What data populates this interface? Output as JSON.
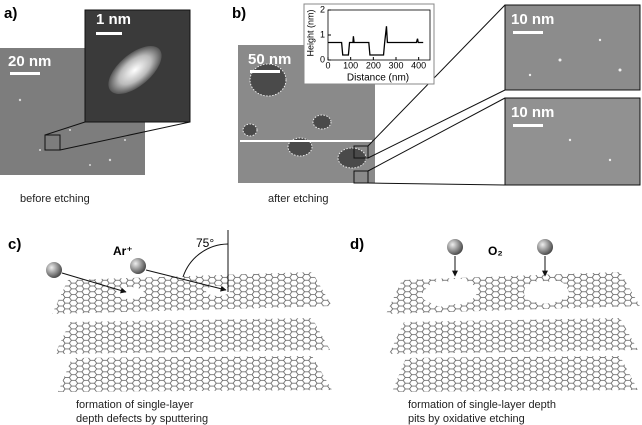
{
  "panels": {
    "a": {
      "label": "a)",
      "scale_main": "20 nm",
      "scale_inset": "1 nm",
      "caption": "before etching"
    },
    "b": {
      "label": "b)",
      "scale_main": "50 nm",
      "scale_right_top": "10 nm",
      "scale_right_bottom": "10 nm",
      "caption": "after etching"
    },
    "c": {
      "label": "c)",
      "ion": "Ar⁺",
      "angle": "75°",
      "caption_lines": [
        "formation of single-layer",
        "depth defects by sputtering"
      ]
    },
    "d": {
      "label": "d)",
      "gas": "O₂",
      "caption_lines": [
        "formation of single-layer depth",
        "pits by oxidative etching"
      ]
    }
  },
  "chart_data": {
    "type": "line",
    "xlabel": "Distance (nm)",
    "ylabel": "Height (nm)",
    "x": [
      0,
      60,
      65,
      90,
      95,
      110,
      112,
      115,
      180,
      185,
      245,
      250,
      258,
      262,
      265,
      300,
      390,
      395,
      398,
      420
    ],
    "values": [
      0.7,
      0.7,
      0.2,
      0.2,
      0.7,
      0.7,
      0.95,
      0.7,
      0.7,
      0.2,
      0.2,
      0.7,
      1.35,
      0.7,
      0.7,
      0.7,
      0.7,
      0.85,
      0.7,
      0.7
    ],
    "color": "#000000",
    "xlim": [
      0,
      450
    ],
    "ylim": [
      0,
      2
    ],
    "xticks": [
      0,
      100,
      200,
      300,
      400
    ],
    "yticks": [
      0,
      1,
      2
    ]
  }
}
